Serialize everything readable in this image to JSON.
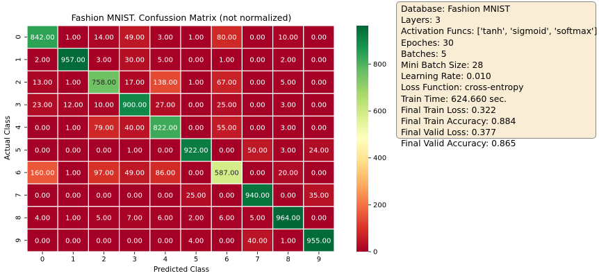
{
  "chart_data": {
    "type": "heatmap",
    "title": "Fashion MNIST. Confussion Matrix (not normalized)",
    "xlabel": "Predicted Class",
    "ylabel": "Actual Class",
    "x_categories": [
      "0",
      "1",
      "2",
      "3",
      "4",
      "5",
      "6",
      "7",
      "8",
      "9"
    ],
    "y_categories": [
      "0",
      "1",
      "2",
      "3",
      "4",
      "5",
      "6",
      "7",
      "8",
      "9"
    ],
    "values": [
      [
        842,
        1,
        14,
        49,
        3,
        1,
        80,
        0,
        10,
        0
      ],
      [
        2,
        957,
        3,
        30,
        5,
        0,
        1,
        0,
        2,
        0
      ],
      [
        13,
        1,
        758,
        17,
        138,
        1,
        67,
        0,
        5,
        0
      ],
      [
        23,
        12,
        10,
        900,
        27,
        0,
        25,
        0,
        3,
        0
      ],
      [
        0,
        1,
        79,
        40,
        822,
        0,
        55,
        0,
        3,
        0
      ],
      [
        0,
        0,
        0,
        1,
        0,
        922,
        0,
        50,
        3,
        24
      ],
      [
        160,
        1,
        97,
        49,
        86,
        0,
        587,
        0,
        20,
        0
      ],
      [
        0,
        0,
        0,
        0,
        0,
        25,
        0,
        940,
        0,
        35
      ],
      [
        4,
        1,
        5,
        7,
        6,
        2,
        6,
        5,
        964,
        0
      ],
      [
        0,
        0,
        0,
        0,
        0,
        4,
        0,
        40,
        1,
        955
      ]
    ],
    "value_format_decimals": 2,
    "colormap": "RdYlGn",
    "color_range": [
      0,
      964
    ],
    "colorbar_ticks": [
      0,
      200,
      400,
      600,
      800
    ]
  },
  "info_box": {
    "lines": [
      "Database: Fashion MNIST",
      "Layers: 3",
      "Activation Funcs: ['tanh', 'sigmoid', 'softmax']",
      "Epoches: 30",
      "Batches: 5",
      "Mini Batch Size: 28",
      "Learning Rate: 0.010",
      "Loss Function: cross-entropy",
      "Train Time: 624.660 sec.",
      "Final Train Loss: 0.322",
      "Final Train Accuracy: 0.884",
      "Final Valid Loss: 0.377",
      "Final Valid Accuracy: 0.865"
    ]
  }
}
